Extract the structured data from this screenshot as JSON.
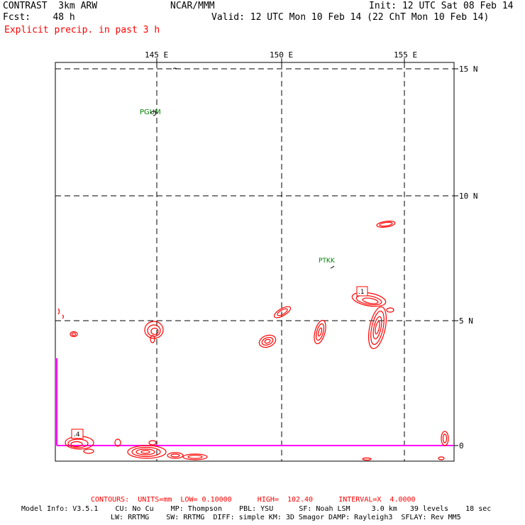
{
  "header": {
    "model_name": "CONTRAST  3km ARW",
    "forecast": "Fcst:    48 h",
    "center": "NCAR/MMM",
    "init": "Init: 12 UTC Sat 08 Feb 14",
    "valid": "Valid: 12 UTC Mon 10 Feb 14 (22 ChT Mon 10 Feb 14)",
    "field_title": "Explicit precip. in past 3 h"
  },
  "map": {
    "lon_labels": [
      "145 E",
      "150 E",
      "155 E"
    ],
    "lat_labels": [
      "15 N",
      "10 N",
      "5 N",
      "0"
    ],
    "stations": [
      {
        "id": "PGUM"
      },
      {
        "id": "PTKK"
      }
    ],
    "max_labels": [
      ".1",
      ".4"
    ],
    "colors": {
      "contour": "#ff0000",
      "station": "#008000",
      "boundary": "#ff00ff",
      "grid": "#000000"
    }
  },
  "footer": {
    "contours": "CONTOURS:  UNITS=mm  LOW= 0.10000      HIGH=  102.40      INTERVAL=X  4.0000",
    "model_info_1": "Model Info: V3.5.1    CU: No Cu    MP: Thompson    PBL: YSU      SF: Noah LSM     3.0 km   39 levels    18 sec",
    "model_info_2": "LW: RRTMG    SW: RRTMG  DIFF: simple KM: 3D Smagor DAMP: Rayleigh3  SFLAY: Rev MM5"
  }
}
